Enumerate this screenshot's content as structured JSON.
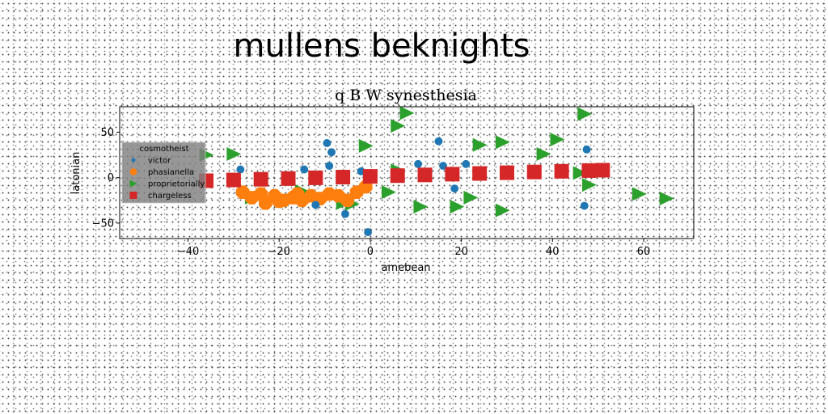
{
  "figure": {
    "suptitle": "mullens beknights"
  },
  "chart_data": {
    "type": "scatter",
    "title": "q B W synesthesia",
    "xlabel": "amebean",
    "ylabel": "latonian",
    "xlim": [
      -55,
      71
    ],
    "ylim": [
      -67,
      78
    ],
    "xticks": [
      -40,
      -20,
      0,
      20,
      40,
      60
    ],
    "yticks": [
      -50,
      0,
      50
    ],
    "grid": false,
    "legend": {
      "title": "cosmotheist",
      "position": "left"
    },
    "series": [
      {
        "name": "victor",
        "marker": "circle",
        "color": "#1f77b4",
        "points": [
          [
            -28.5,
            9
          ],
          [
            -9.5,
            38
          ],
          [
            -8.5,
            28
          ],
          [
            -9,
            13
          ],
          [
            -14.5,
            9
          ],
          [
            -2,
            7
          ],
          [
            -12,
            -30
          ],
          [
            -5.5,
            -40
          ],
          [
            -0.5,
            -60
          ],
          [
            10.5,
            15
          ],
          [
            15,
            40
          ],
          [
            16,
            13
          ],
          [
            18.5,
            -12
          ],
          [
            21,
            15
          ],
          [
            47.5,
            31
          ],
          [
            47,
            -31
          ]
        ]
      },
      {
        "name": "phasianella",
        "marker": "octagon",
        "color": "#ff7f0e",
        "points": [
          [
            -28,
            -16
          ],
          [
            -26,
            -22
          ],
          [
            -23,
            -28
          ],
          [
            -21,
            -20
          ],
          [
            -19,
            -25
          ],
          [
            -17,
            -22
          ],
          [
            -15,
            -25
          ],
          [
            -13,
            -20
          ],
          [
            -11,
            -23
          ],
          [
            -9,
            -18
          ],
          [
            -7,
            -20
          ],
          [
            -5,
            -25
          ],
          [
            -3,
            -16
          ],
          [
            -1,
            -10
          ],
          [
            -24,
            -18
          ],
          [
            -20,
            -26
          ],
          [
            -16,
            -18
          ]
        ]
      },
      {
        "name": "proprietorially",
        "marker": "triangle-right",
        "color": "#2ca02c",
        "points": [
          [
            -36,
            25
          ],
          [
            -30,
            26
          ],
          [
            -26,
            -22
          ],
          [
            -15,
            -15
          ],
          [
            -6,
            -28
          ],
          [
            -4,
            -29
          ],
          [
            -1,
            35
          ],
          [
            4,
            -16
          ],
          [
            6,
            57
          ],
          [
            8,
            71
          ],
          [
            6,
            8
          ],
          [
            11,
            -32
          ],
          [
            19,
            -32
          ],
          [
            22,
            -22
          ],
          [
            24,
            36
          ],
          [
            29,
            -36
          ],
          [
            29,
            39
          ],
          [
            38,
            26
          ],
          [
            41,
            42
          ],
          [
            46,
            5
          ],
          [
            47,
            70
          ],
          [
            48,
            -8
          ],
          [
            59,
            -18
          ],
          [
            65,
            -23
          ]
        ]
      },
      {
        "name": "chargeless",
        "marker": "square",
        "color": "#d62728",
        "points": [
          [
            -36,
            -3.4
          ],
          [
            -30,
            -2.6
          ],
          [
            -24,
            -1.8
          ],
          [
            -18,
            -1.0
          ],
          [
            -12,
            -0.2
          ],
          [
            -6,
            0.6
          ],
          [
            0,
            1.4
          ],
          [
            6,
            2.2
          ],
          [
            12,
            3.0
          ],
          [
            18,
            3.8
          ],
          [
            24,
            4.6
          ],
          [
            30,
            5.4
          ],
          [
            36,
            6.2
          ],
          [
            42,
            7.0
          ],
          [
            48,
            7.8
          ],
          [
            51,
            8.2
          ]
        ]
      }
    ]
  }
}
